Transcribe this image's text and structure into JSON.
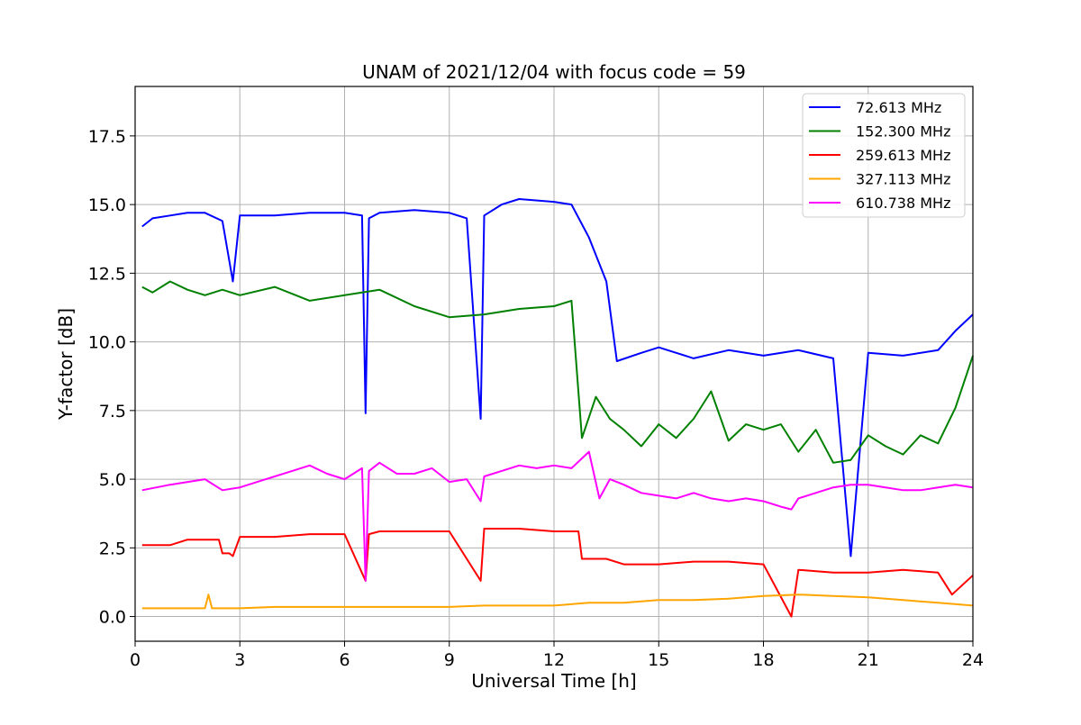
{
  "chart_data": {
    "type": "line",
    "title": "UNAM of 2021/12/04 with focus code = 59",
    "xlabel": "Universal Time [h]",
    "ylabel": "Y-factor [dB]",
    "xlim": [
      0,
      24
    ],
    "ylim": [
      -0.9,
      19.3
    ],
    "xticks": [
      0,
      3,
      6,
      9,
      12,
      15,
      18,
      21,
      24
    ],
    "xtick_labels": [
      "0",
      "3",
      "6",
      "9",
      "12",
      "15",
      "18",
      "21",
      "24"
    ],
    "yticks": [
      0.0,
      2.5,
      5.0,
      7.5,
      10.0,
      12.5,
      15.0,
      17.5
    ],
    "ytick_labels": [
      "0.0",
      "2.5",
      "5.0",
      "7.5",
      "10.0",
      "12.5",
      "15.0",
      "17.5"
    ],
    "grid": true,
    "legend_position": "top-right",
    "series": [
      {
        "name": " 72.613 MHz",
        "color": "#0000ff",
        "x": [
          0.2,
          0.5,
          1.0,
          1.5,
          2.0,
          2.5,
          2.8,
          3.0,
          4.0,
          5.0,
          6.0,
          6.5,
          6.6,
          6.7,
          7.0,
          8.0,
          9.0,
          9.5,
          9.9,
          10.0,
          10.5,
          11.0,
          12.0,
          12.5,
          13.0,
          13.5,
          13.8,
          14.5,
          15.0,
          16.0,
          17.0,
          18.0,
          19.0,
          20.0,
          20.5,
          21.0,
          22.0,
          23.0,
          23.5,
          24.0
        ],
        "y": [
          14.2,
          14.5,
          14.6,
          14.7,
          14.7,
          14.4,
          12.2,
          14.6,
          14.6,
          14.7,
          14.7,
          14.6,
          7.4,
          14.5,
          14.7,
          14.8,
          14.7,
          14.5,
          7.2,
          14.6,
          15.0,
          15.2,
          15.1,
          15.0,
          13.8,
          12.2,
          9.3,
          9.6,
          9.8,
          9.4,
          9.7,
          9.5,
          9.7,
          9.4,
          2.2,
          9.6,
          9.5,
          9.7,
          10.4,
          11.0
        ]
      },
      {
        "name": "152.300 MHz",
        "color": "#008000",
        "x": [
          0.2,
          0.5,
          1.0,
          1.5,
          2.0,
          2.5,
          3.0,
          4.0,
          5.0,
          6.0,
          7.0,
          8.0,
          9.0,
          10.0,
          11.0,
          12.0,
          12.5,
          12.8,
          13.2,
          13.6,
          14.0,
          14.5,
          15.0,
          15.5,
          16.0,
          16.5,
          17.0,
          17.5,
          18.0,
          18.5,
          19.0,
          19.5,
          20.0,
          20.5,
          21.0,
          21.5,
          22.0,
          22.5,
          23.0,
          23.5,
          24.0
        ],
        "y": [
          12.0,
          11.8,
          12.2,
          11.9,
          11.7,
          11.9,
          11.7,
          12.0,
          11.5,
          11.7,
          11.9,
          11.3,
          10.9,
          11.0,
          11.2,
          11.3,
          11.5,
          6.5,
          8.0,
          7.2,
          6.8,
          6.2,
          7.0,
          6.5,
          7.2,
          8.2,
          6.4,
          7.0,
          6.8,
          7.0,
          6.0,
          6.8,
          5.6,
          5.7,
          6.6,
          6.2,
          5.9,
          6.6,
          6.3,
          7.6,
          9.5
        ]
      },
      {
        "name": "259.613 MHz",
        "color": "#ff0000",
        "x": [
          0.2,
          1.0,
          1.5,
          2.0,
          2.4,
          2.5,
          2.7,
          2.8,
          3.0,
          4.0,
          5.0,
          6.0,
          6.6,
          6.7,
          7.0,
          8.0,
          9.0,
          9.9,
          10.0,
          11.0,
          12.0,
          12.7,
          12.8,
          13.5,
          14.0,
          15.0,
          16.0,
          17.0,
          18.0,
          18.8,
          19.0,
          20.0,
          21.0,
          22.0,
          23.0,
          23.4,
          24.0
        ],
        "y": [
          2.6,
          2.6,
          2.8,
          2.8,
          2.8,
          2.3,
          2.3,
          2.2,
          2.9,
          2.9,
          3.0,
          3.0,
          1.3,
          3.0,
          3.1,
          3.1,
          3.1,
          1.3,
          3.2,
          3.2,
          3.1,
          3.1,
          2.1,
          2.1,
          1.9,
          1.9,
          2.0,
          2.0,
          1.9,
          0.0,
          1.7,
          1.6,
          1.6,
          1.7,
          1.6,
          0.8,
          1.5
        ]
      },
      {
        "name": "327.113 MHz",
        "color": "#ffa500",
        "x": [
          0.2,
          1.0,
          2.0,
          2.1,
          2.2,
          3.0,
          4.0,
          5.0,
          6.0,
          7.0,
          8.0,
          9.0,
          10.0,
          11.0,
          12.0,
          13.0,
          14.0,
          15.0,
          16.0,
          17.0,
          18.0,
          19.0,
          20.0,
          21.0,
          22.0,
          23.0,
          24.0
        ],
        "y": [
          0.3,
          0.3,
          0.3,
          0.8,
          0.3,
          0.3,
          0.35,
          0.35,
          0.35,
          0.35,
          0.35,
          0.35,
          0.4,
          0.4,
          0.4,
          0.5,
          0.5,
          0.6,
          0.6,
          0.65,
          0.75,
          0.8,
          0.75,
          0.7,
          0.6,
          0.5,
          0.4
        ]
      },
      {
        "name": "610.738 MHz",
        "color": "#ff00ff",
        "x": [
          0.2,
          1.0,
          2.0,
          2.5,
          3.0,
          3.5,
          4.0,
          4.5,
          5.0,
          5.5,
          6.0,
          6.5,
          6.6,
          6.7,
          7.0,
          7.5,
          8.0,
          8.5,
          9.0,
          9.5,
          9.9,
          10.0,
          10.5,
          11.0,
          11.5,
          12.0,
          12.5,
          13.0,
          13.3,
          13.6,
          14.0,
          14.5,
          15.0,
          15.5,
          16.0,
          16.5,
          17.0,
          17.5,
          18.0,
          18.5,
          18.8,
          19.0,
          19.5,
          20.0,
          20.5,
          21.0,
          21.5,
          22.0,
          22.5,
          23.0,
          23.5,
          24.0
        ],
        "y": [
          4.6,
          4.8,
          5.0,
          4.6,
          4.7,
          4.9,
          5.1,
          5.3,
          5.5,
          5.2,
          5.0,
          5.4,
          1.3,
          5.3,
          5.6,
          5.2,
          5.2,
          5.4,
          4.9,
          5.0,
          4.2,
          5.1,
          5.3,
          5.5,
          5.4,
          5.5,
          5.4,
          6.0,
          4.3,
          5.0,
          4.8,
          4.5,
          4.4,
          4.3,
          4.5,
          4.3,
          4.2,
          4.3,
          4.2,
          4.0,
          3.9,
          4.3,
          4.5,
          4.7,
          4.8,
          4.8,
          4.7,
          4.6,
          4.6,
          4.7,
          4.8,
          4.7
        ]
      }
    ]
  }
}
